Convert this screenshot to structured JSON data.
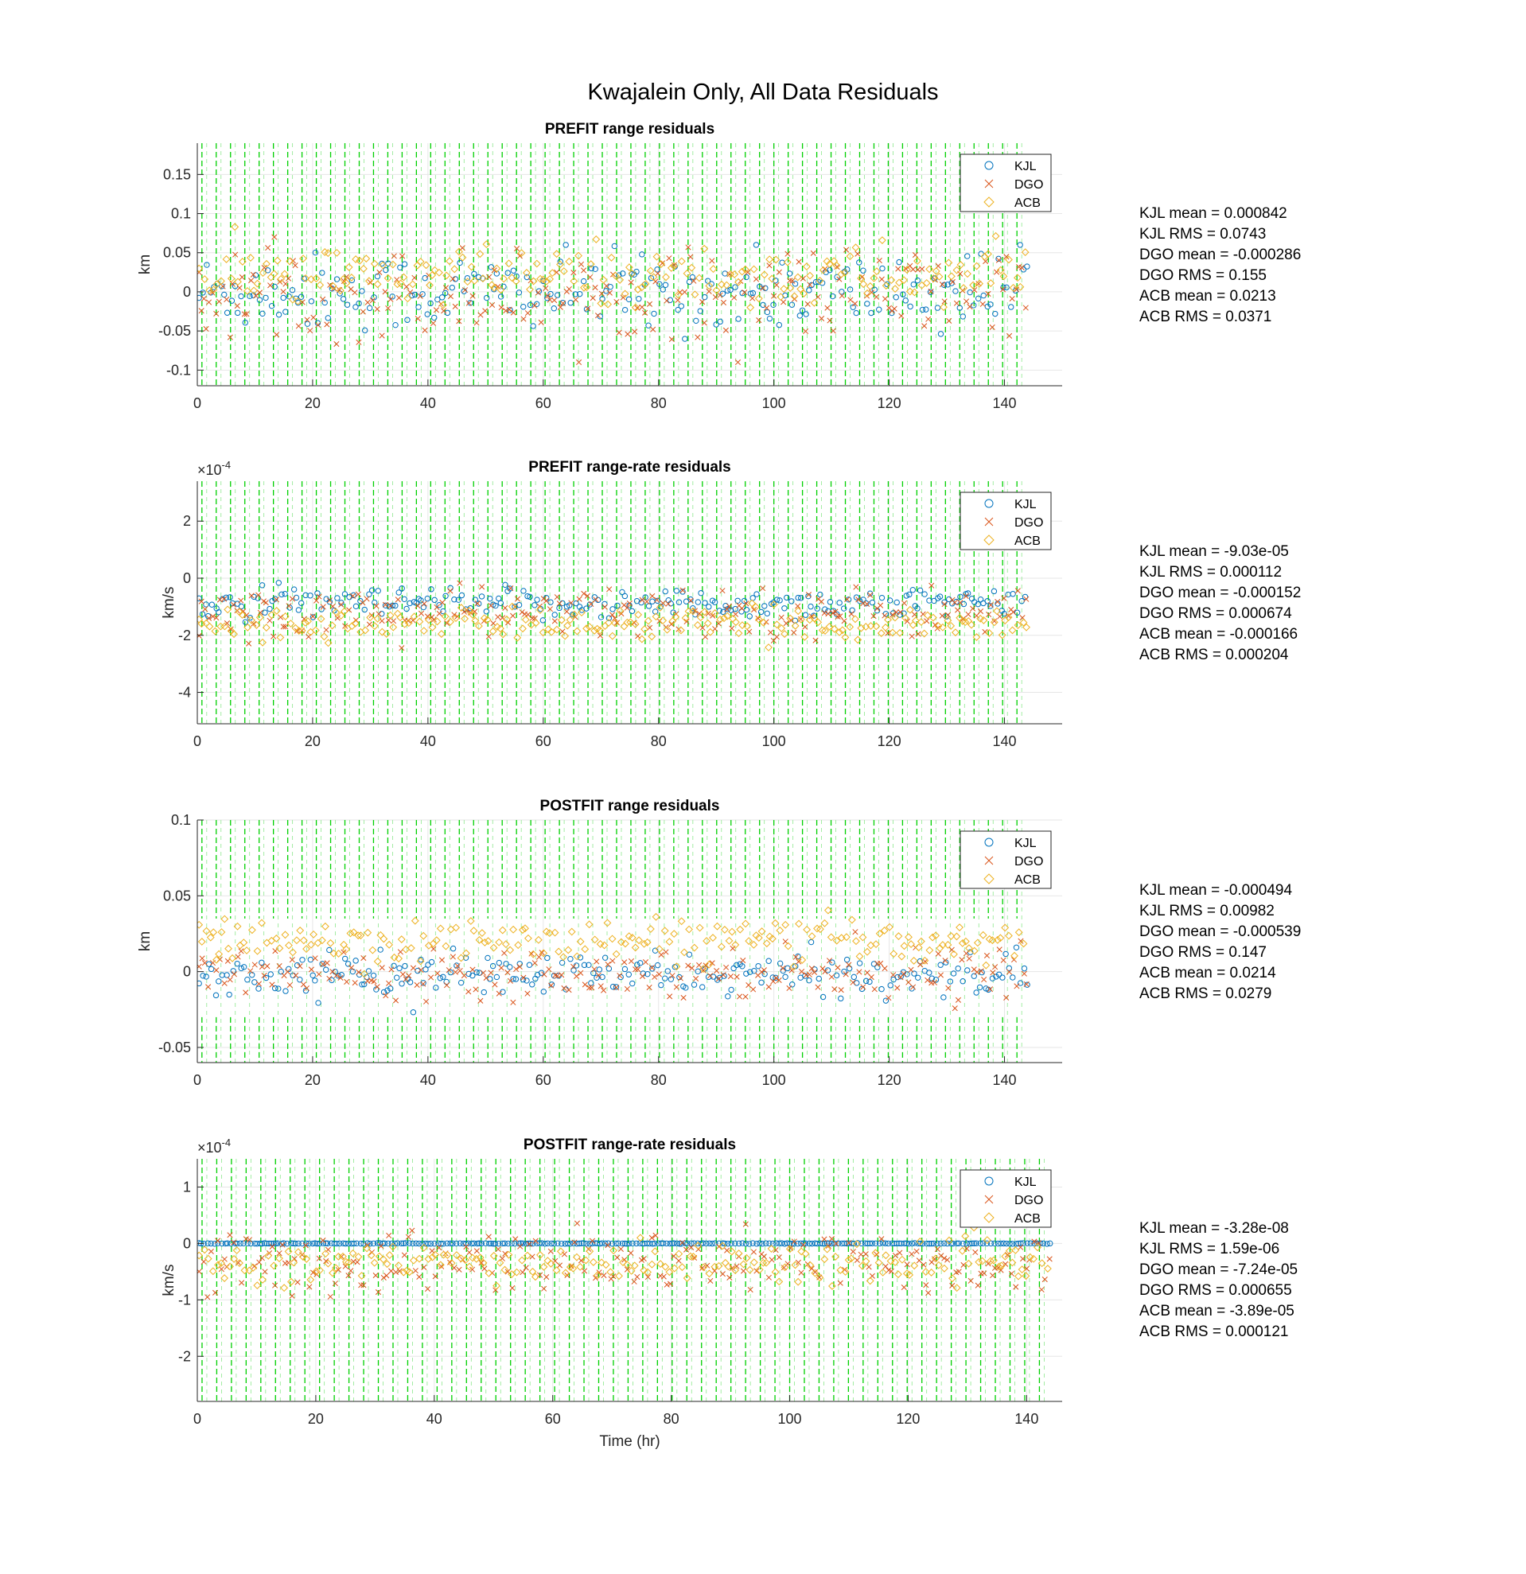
{
  "figure": {
    "title": "Kwajalein Only, All Data Residuals"
  },
  "chart_data": [
    {
      "type": "scatter",
      "title": "PREFIT range residuals",
      "xlabel": "",
      "ylabel": "km",
      "xlim": [
        0,
        150
      ],
      "ylim": [
        -0.12,
        0.19
      ],
      "xticks": [
        0,
        20,
        40,
        60,
        80,
        100,
        120,
        140
      ],
      "xtick_labels": [
        "0",
        "20",
        "40",
        "60",
        "80",
        "100",
        "120",
        "140"
      ],
      "yticks": [
        -0.1,
        -0.05,
        0,
        0.05,
        0.1,
        0.15
      ],
      "ytick_labels": [
        "-0.1",
        "-0.05",
        "0",
        "0.05",
        "0.1",
        "0.15"
      ],
      "exponent_label": "",
      "grid": true,
      "legend_position": "top-right",
      "series": [
        {
          "name": "KJL",
          "marker": "circle",
          "color": "#0072BD",
          "center": 0.0,
          "spread": 0.045,
          "step": 0.6,
          "low": -0.08,
          "high": 0.06
        },
        {
          "name": "DGO",
          "marker": "x",
          "color": "#D95319",
          "center": 0.0,
          "spread": 0.05,
          "step": 0.6,
          "low": -0.09,
          "high": 0.07
        },
        {
          "name": "ACB",
          "marker": "diamond",
          "color": "#EDB120",
          "center": 0.02,
          "spread": 0.035,
          "step": 0.7,
          "low": -0.02,
          "high": 0.12
        }
      ],
      "pass_lines": {
        "color": "#00D000",
        "x_start": 0.8,
        "x_step": 2.48,
        "x_end": 144
      },
      "stats": [
        "KJL mean = 0.000842",
        "KJL RMS = 0.0743",
        "DGO mean = -0.000286",
        "DGO RMS = 0.155",
        "ACB mean = 0.0213",
        "ACB RMS = 0.0371"
      ]
    },
    {
      "type": "scatter",
      "title": "PREFIT range-rate residuals",
      "xlabel": "",
      "ylabel": "km/s",
      "xlim": [
        0,
        150
      ],
      "ylim": [
        -5.1,
        3.4
      ],
      "xticks": [
        0,
        20,
        40,
        60,
        80,
        100,
        120,
        140
      ],
      "xtick_labels": [
        "0",
        "20",
        "40",
        "60",
        "80",
        "100",
        "120",
        "140"
      ],
      "yticks": [
        -4,
        -2,
        0,
        2
      ],
      "ytick_labels": [
        "-4",
        "-2",
        "0",
        "2"
      ],
      "exponent_label": "×10",
      "exponent_power": "-4",
      "grid": true,
      "legend_position": "top-right",
      "series": [
        {
          "name": "KJL",
          "marker": "circle",
          "color": "#0072BD",
          "center": -0.9,
          "spread": 0.5,
          "step": 0.6,
          "low": -1.8,
          "high": 0.1
        },
        {
          "name": "DGO",
          "marker": "x",
          "color": "#D95319",
          "center": -1.2,
          "spread": 0.8,
          "step": 0.6,
          "low": -4.2,
          "high": 0.3
        },
        {
          "name": "ACB",
          "marker": "diamond",
          "color": "#EDB120",
          "center": -1.6,
          "spread": 0.5,
          "step": 0.7,
          "low": -2.8,
          "high": -0.3
        }
      ],
      "pass_lines": {
        "color": "#00D000",
        "x_start": 0.8,
        "x_step": 2.48,
        "x_end": 144
      },
      "stats": [
        "KJL mean = -9.03e-05",
        "KJL RMS = 0.000112",
        "DGO mean = -0.000152",
        "DGO RMS = 0.000674",
        "ACB mean = -0.000166",
        "ACB RMS = 0.000204"
      ]
    },
    {
      "type": "scatter",
      "title": "POSTFIT range residuals",
      "xlabel": "",
      "ylabel": "km",
      "xlim": [
        0,
        150
      ],
      "ylim": [
        -0.06,
        0.1
      ],
      "xticks": [
        0,
        20,
        40,
        60,
        80,
        100,
        120,
        140
      ],
      "xtick_labels": [
        "0",
        "20",
        "40",
        "60",
        "80",
        "100",
        "120",
        "140"
      ],
      "yticks": [
        -0.05,
        0,
        0.05,
        0.1
      ],
      "ytick_labels": [
        "-0.05",
        "0",
        "0.05",
        "0.1"
      ],
      "exponent_label": "",
      "grid": true,
      "legend_position": "top-right",
      "series": [
        {
          "name": "KJL",
          "marker": "circle",
          "color": "#0072BD",
          "center": -0.002,
          "spread": 0.012,
          "step": 0.6,
          "low": -0.04,
          "high": 0.03
        },
        {
          "name": "DGO",
          "marker": "x",
          "color": "#D95319",
          "center": 0.0,
          "spread": 0.014,
          "step": 0.6,
          "low": -0.035,
          "high": 0.06
        },
        {
          "name": "ACB",
          "marker": "diamond",
          "color": "#EDB120",
          "center": 0.02,
          "spread": 0.013,
          "step": 0.7,
          "low": -0.033,
          "high": 0.053
        }
      ],
      "pass_lines": {
        "color": "#00D000",
        "x_start": 0.8,
        "x_step": 2.48,
        "x_end": 144,
        "gap_low": -0.03,
        "gap_high": 0.035
      },
      "stats": [
        "KJL mean = -0.000494",
        "KJL RMS = 0.00982",
        "DGO mean = -0.000539",
        "DGO RMS = 0.147",
        "ACB mean = 0.0214",
        "ACB RMS = 0.0279"
      ]
    },
    {
      "type": "scatter",
      "title": "POSTFIT range-rate residuals",
      "xlabel": "Time (hr)",
      "ylabel": "km/s",
      "xlim": [
        0,
        146
      ],
      "ylim": [
        -2.8,
        1.5
      ],
      "xticks": [
        0,
        20,
        40,
        60,
        80,
        100,
        120,
        140
      ],
      "xtick_labels": [
        "0",
        "20",
        "40",
        "60",
        "80",
        "100",
        "120",
        "140"
      ],
      "yticks": [
        -2,
        -1,
        0,
        1
      ],
      "ytick_labels": [
        "-2",
        "-1",
        "0",
        "1"
      ],
      "exponent_label": "×10",
      "exponent_power": "-4",
      "grid": true,
      "legend_position": "top-right",
      "series": [
        {
          "name": "KJL",
          "marker": "circle",
          "color": "#0072BD",
          "center": 0.0,
          "spread": 0.005,
          "step": 0.5,
          "low": -0.05,
          "high": 0.05
        },
        {
          "name": "DGO",
          "marker": "x",
          "color": "#D95319",
          "center": -0.35,
          "spread": 0.5,
          "step": 0.6,
          "low": -2.7,
          "high": 1.3
        },
        {
          "name": "ACB",
          "marker": "diamond",
          "color": "#EDB120",
          "center": -0.35,
          "spread": 0.3,
          "step": 0.7,
          "low": -1.2,
          "high": 0.6
        }
      ],
      "pass_lines": {
        "color": "#00D000",
        "x_start": 0.8,
        "x_step": 2.48,
        "x_end": 144
      },
      "stats": [
        "KJL mean = -3.28e-08",
        "KJL RMS = 1.59e-06",
        "DGO mean = -7.24e-05",
        "DGO RMS = 0.000655",
        "ACB mean = -3.89e-05",
        "ACB RMS = 0.000121"
      ]
    }
  ]
}
